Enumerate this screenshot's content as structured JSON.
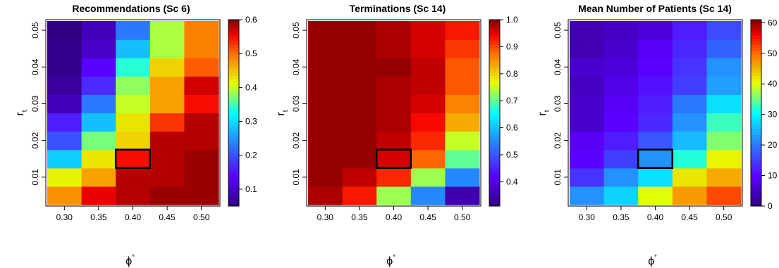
{
  "chart_data": [
    {
      "type": "heatmap",
      "title": "Recommendations (Sc 6)",
      "x": [
        "0.30",
        "0.35",
        "0.40",
        "0.45",
        "0.50"
      ],
      "y": [
        "0.005",
        "0.010",
        "0.015",
        "0.020",
        "0.025",
        "0.030",
        "0.035",
        "0.040",
        "0.045",
        "0.050"
      ],
      "y_ticks": [
        "0.01",
        "0.02",
        "0.03",
        "0.04",
        "0.05"
      ],
      "xlabel": "ϕ*",
      "ylabel": "r_t",
      "colorbar": {
        "min": 0.05,
        "max": 0.6,
        "ticks": [
          "0.1",
          "0.2",
          "0.3",
          "0.4",
          "0.5",
          "0.6"
        ],
        "tick_values": [
          0.1,
          0.2,
          0.3,
          0.4,
          0.5,
          0.6
        ]
      },
      "values": [
        [
          0.48,
          0.56,
          0.58,
          0.59,
          0.59
        ],
        [
          0.42,
          0.47,
          0.58,
          0.58,
          0.59
        ],
        [
          0.29,
          0.43,
          0.55,
          0.58,
          0.59
        ],
        [
          0.2,
          0.37,
          0.44,
          0.58,
          0.58
        ],
        [
          0.16,
          0.28,
          0.43,
          0.53,
          0.58
        ],
        [
          0.09,
          0.23,
          0.4,
          0.47,
          0.55
        ],
        [
          0.07,
          0.17,
          0.38,
          0.47,
          0.57
        ],
        [
          0.06,
          0.14,
          0.34,
          0.44,
          0.51
        ],
        [
          0.06,
          0.1,
          0.28,
          0.39,
          0.49
        ],
        [
          0.05,
          0.09,
          0.23,
          0.39,
          0.49
        ]
      ],
      "highlight": {
        "x": "0.40",
        "y": "0.015"
      }
    },
    {
      "type": "heatmap",
      "title": "Terminations (Sc 14)",
      "x": [
        "0.30",
        "0.35",
        "0.40",
        "0.45",
        "0.50"
      ],
      "y": [
        "0.005",
        "0.010",
        "0.015",
        "0.020",
        "0.025",
        "0.030",
        "0.035",
        "0.040",
        "0.045",
        "0.050"
      ],
      "y_ticks": [
        "0.01",
        "0.02",
        "0.03",
        "0.04",
        "0.05"
      ],
      "xlabel": "ϕ*",
      "ylabel": "r_t",
      "colorbar": {
        "min": 0.31,
        "max": 1.0,
        "ticks": [
          "0.4",
          "0.5",
          "0.6",
          "0.7",
          "0.8",
          "0.9",
          "1.0"
        ],
        "tick_values": [
          0.4,
          0.5,
          0.6,
          0.7,
          0.8,
          0.9,
          1.0
        ]
      },
      "values": [
        [
          0.98,
          0.93,
          0.73,
          0.55,
          0.35
        ],
        [
          0.99,
          0.97,
          0.92,
          0.73,
          0.55
        ],
        [
          0.99,
          0.99,
          0.96,
          0.88,
          0.7
        ],
        [
          0.99,
          0.99,
          0.97,
          0.92,
          0.75
        ],
        [
          0.99,
          0.99,
          0.98,
          0.94,
          0.83
        ],
        [
          0.99,
          0.99,
          0.98,
          0.96,
          0.86
        ],
        [
          0.99,
          0.99,
          0.98,
          0.97,
          0.89
        ],
        [
          0.99,
          0.99,
          0.99,
          0.97,
          0.89
        ],
        [
          0.99,
          0.99,
          0.98,
          0.96,
          0.91
        ],
        [
          0.99,
          0.99,
          0.98,
          0.96,
          0.93
        ]
      ],
      "highlight": {
        "x": "0.40",
        "y": "0.015"
      }
    },
    {
      "type": "heatmap",
      "title": "Mean Number of Patients (Sc 14)",
      "x": [
        "0.30",
        "0.35",
        "0.40",
        "0.45",
        "0.50"
      ],
      "y": [
        "0.005",
        "0.010",
        "0.015",
        "0.020",
        "0.025",
        "0.030",
        "0.035",
        "0.040",
        "0.045",
        "0.050"
      ],
      "y_ticks": [
        "0.01",
        "0.02",
        "0.03",
        "0.04",
        "0.05"
      ],
      "xlabel": "ϕ*",
      "ylabel": "r_t",
      "colorbar": {
        "min": 0,
        "max": 61,
        "ticks": [
          "0",
          "10",
          "20",
          "30",
          "40",
          "50",
          "60"
        ],
        "tick_values": [
          0,
          10,
          20,
          30,
          40,
          50,
          60
        ]
      },
      "values": [
        [
          22,
          27,
          40,
          47,
          52
        ],
        [
          14,
          22,
          28,
          42,
          46
        ],
        [
          10,
          15,
          22,
          32,
          41
        ],
        [
          9,
          12,
          17,
          25,
          36
        ],
        [
          6,
          10,
          13,
          22,
          33
        ],
        [
          6,
          9,
          12,
          20,
          28
        ],
        [
          5,
          8,
          11,
          15,
          23
        ],
        [
          6,
          7,
          10,
          14,
          22
        ],
        [
          4,
          6,
          9,
          13,
          18
        ],
        [
          4,
          5,
          7,
          12,
          16
        ]
      ],
      "highlight": {
        "x": "0.40",
        "y": "0.015"
      }
    }
  ]
}
